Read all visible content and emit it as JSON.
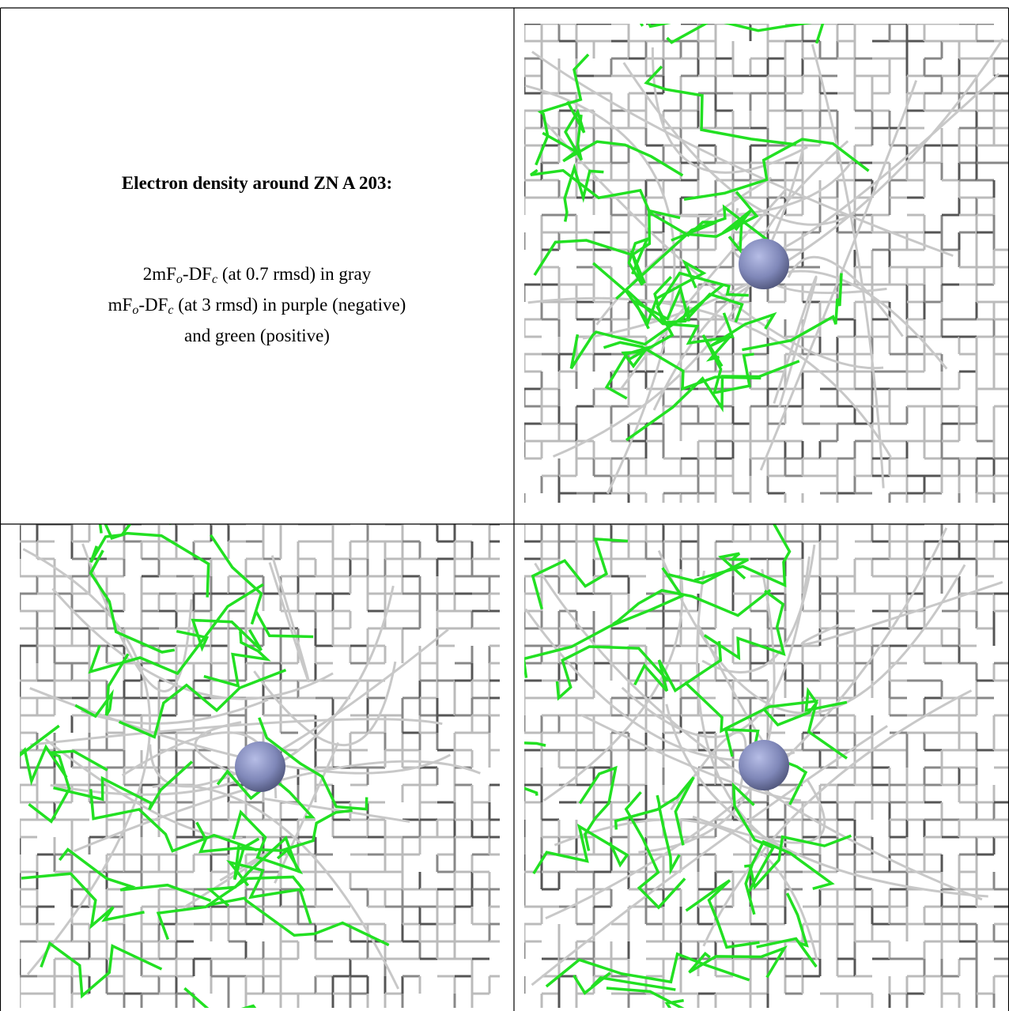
{
  "figure": {
    "title": "Electron density around ZN A 203:",
    "lines": [
      {
        "parts": [
          "2mF",
          "o",
          "-DF",
          "c",
          " (at 0.7 rmsd) in gray"
        ]
      },
      {
        "parts": [
          "mF",
          "o",
          "-DF",
          "c",
          " (at 3 rmsd) in purple (negative)"
        ]
      },
      {
        "parts": [
          "and green (positive)"
        ]
      }
    ]
  }
}
